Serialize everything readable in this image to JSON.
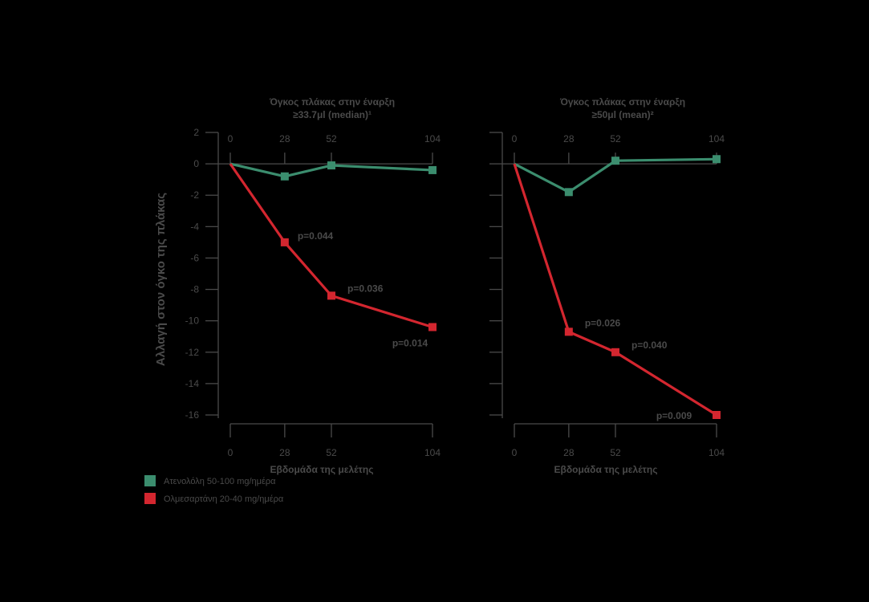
{
  "ylabel": "Αλλαγή στον όγκο της πλάκας",
  "legend": [
    {
      "name": "Ατενολόλη 50-100 mg/ημέρα",
      "color": "#3b8d6e"
    },
    {
      "name": "Ολμεσαρτάνη 20-40 mg/ημέρα",
      "color": "#d3262f"
    }
  ],
  "chart_data": [
    {
      "type": "line",
      "title_lines": [
        "Όγκος πλάκας στην έναρξη",
        "≥33.7μl (median)¹"
      ],
      "xlabel": "Εβδομάδα της μελέτης",
      "x": [
        0,
        28,
        52,
        104
      ],
      "x_tick_labels": [
        "0",
        "28",
        "52",
        "104"
      ],
      "ylim": [
        -16,
        2
      ],
      "y_ticks": [
        2,
        0,
        -2,
        -4,
        -6,
        -8,
        -10,
        -12,
        -14,
        -16
      ],
      "y_tick_labels": [
        "2",
        "0",
        "-2",
        "-4",
        "-6",
        "-8",
        "-10",
        "-12",
        "-14",
        "-16"
      ],
      "series": [
        {
          "name": "Ατενολόλη 50-100 mg/ημέρα",
          "color": "#3b8d6e",
          "values": [
            0,
            -0.8,
            -0.1,
            -0.4
          ]
        },
        {
          "name": "Ολμεσαρτάνη 20-40 mg/ημέρα",
          "color": "#d3262f",
          "values": [
            0,
            -5.0,
            -8.4,
            -10.4
          ]
        }
      ],
      "annotations": [
        {
          "text": "p=0.044",
          "x": 28,
          "y": -5.0
        },
        {
          "text": "p=0.036",
          "x": 52,
          "y": -8.4
        },
        {
          "text": "p=0.014",
          "x": 104,
          "y": -10.4
        }
      ]
    },
    {
      "type": "line",
      "title_lines": [
        "Όγκος πλάκας στην έναρξη",
        "≥50μl (mean)²"
      ],
      "xlabel": "Εβδομάδα της μελέτης",
      "x": [
        0,
        28,
        52,
        104
      ],
      "x_tick_labels": [
        "0",
        "28",
        "52",
        "104"
      ],
      "ylim": [
        -16,
        2
      ],
      "y_ticks": [
        2,
        0,
        -2,
        -4,
        -6,
        -8,
        -10,
        -12,
        -14,
        -16
      ],
      "series": [
        {
          "name": "Ατενολόλη 50-100 mg/ημέρα",
          "color": "#3b8d6e",
          "values": [
            0,
            -1.8,
            0.2,
            0.3
          ]
        },
        {
          "name": "Ολμεσαρτάνη 20-40 mg/ημέρα",
          "color": "#d3262f",
          "values": [
            0,
            -10.7,
            -12.0,
            -16.0
          ]
        }
      ],
      "annotations": [
        {
          "text": "p=0.026",
          "x": 28,
          "y": -10.7
        },
        {
          "text": "p=0.040",
          "x": 52,
          "y": -12.0
        },
        {
          "text": "p=0.009",
          "x": 104,
          "y": -16.0
        }
      ]
    }
  ]
}
